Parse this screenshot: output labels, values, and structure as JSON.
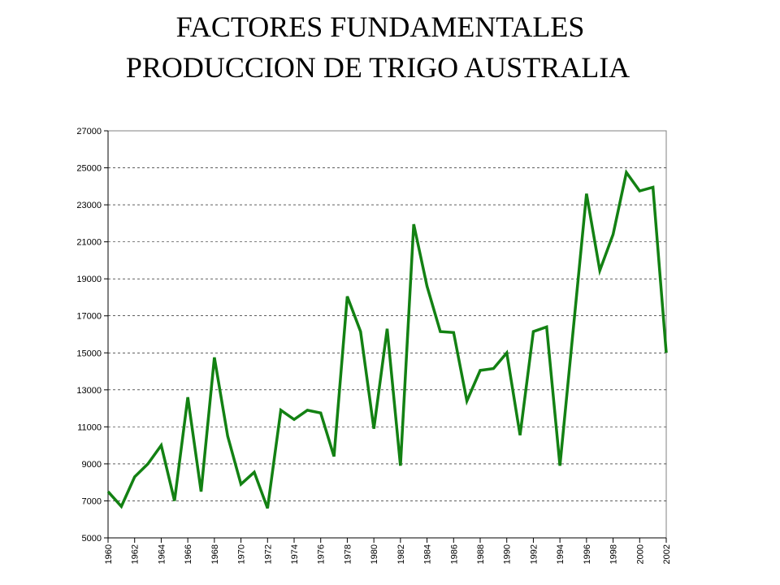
{
  "chart_data": {
    "type": "line",
    "title": "FACTORES FUNDAMENTALES",
    "subtitle": "PRODUCCION DE TRIGO AUSTRALIA",
    "x": [
      1960,
      1961,
      1962,
      1963,
      1964,
      1965,
      1966,
      1967,
      1968,
      1969,
      1970,
      1971,
      1972,
      1973,
      1974,
      1975,
      1976,
      1977,
      1978,
      1979,
      1980,
      1981,
      1982,
      1983,
      1984,
      1985,
      1986,
      1987,
      1988,
      1989,
      1990,
      1991,
      1992,
      1993,
      1994,
      1995,
      1996,
      1997,
      1998,
      1999,
      2000,
      2001,
      2002
    ],
    "series": [
      {
        "color": "#138113",
        "values": [
          7500,
          6700,
          8300,
          9000,
          10000,
          7000,
          12600,
          7500,
          14750,
          10500,
          7900,
          8550,
          6600,
          11900,
          11400,
          11900,
          11750,
          9400,
          18050,
          16150,
          10900,
          16300,
          8900,
          21950,
          18600,
          16150,
          16100,
          12400,
          14050,
          14150,
          15000,
          10550,
          16150,
          16400,
          8900,
          16250,
          23600,
          19450,
          21400,
          24750,
          23750,
          23950,
          15000
        ]
      }
    ],
    "xlim": [
      1960,
      2002
    ],
    "xticks": [
      1960,
      1962,
      1964,
      1966,
      1968,
      1970,
      1972,
      1974,
      1976,
      1978,
      1980,
      1982,
      1984,
      1986,
      1988,
      1990,
      1992,
      1994,
      1996,
      1998,
      2000,
      2002
    ],
    "ylim": [
      5000,
      27000
    ],
    "yticks": [
      5000,
      7000,
      9000,
      11000,
      13000,
      15000,
      17000,
      19000,
      21000,
      23000,
      25000,
      27000
    ],
    "grid": true
  }
}
